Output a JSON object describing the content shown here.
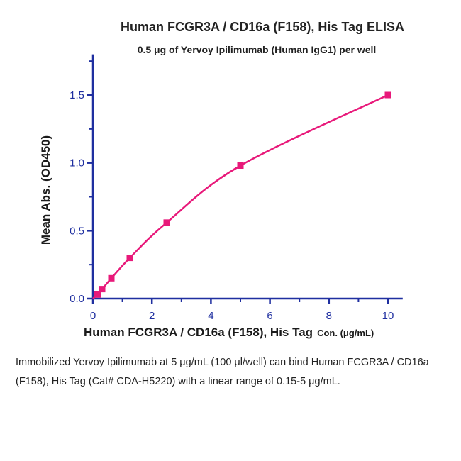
{
  "chart_data": {
    "type": "scatter",
    "title": "Human FCGR3A / CD16a (F158), His Tag ELISA",
    "subtitle": "0.5 μg of Yervoy Ipilimumab (Human IgG1) per well",
    "xlabel": "Human FCGR3A / CD16a (F158), His Tag",
    "xlabel_unit": "Con. (μg/mL)",
    "ylabel": "Mean Abs. (OD450)",
    "xlim": [
      0,
      10.5
    ],
    "ylim": [
      0,
      1.8
    ],
    "x_ticks": [
      0,
      2,
      4,
      6,
      8,
      10
    ],
    "x_tick_labels": [
      "0",
      "2",
      "4",
      "6",
      "8",
      "10"
    ],
    "y_ticks": [
      0.0,
      0.5,
      1.0,
      1.5
    ],
    "y_tick_labels": [
      "0.0",
      "0.5",
      "1.0",
      "1.5"
    ],
    "grid": false,
    "legend": "none",
    "series": [
      {
        "x": [
          0.156,
          0.3125,
          0.625,
          1.25,
          2.5,
          5,
          10
        ],
        "y": [
          0.03,
          0.07,
          0.15,
          0.3,
          0.56,
          0.98,
          1.5
        ],
        "color": "#e8197a",
        "marker": "square",
        "fit_line": true
      }
    ]
  },
  "caption": {
    "text": "Immobilized Yervoy Ipilimumab at 5 μg/mL (100 μl/well) can bind Human FCGR3A / CD16a (F158), His Tag (Cat# CDA-H5220) with a linear range of 0.15-5 μg/mL."
  },
  "colors": {
    "axis": "#1f2fa0",
    "series": "#e8197a"
  }
}
